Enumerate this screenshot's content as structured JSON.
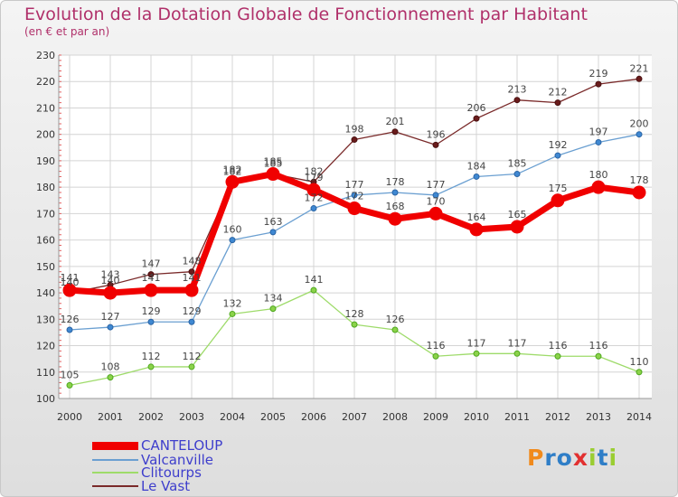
{
  "title": "Evolution de la Dotation Globale de Fonctionnement par Habitant",
  "subtitle": "(en € et par an)",
  "logo": {
    "text": "ProXiti",
    "letters": [
      "P",
      "r",
      "o",
      "x",
      "i",
      "t",
      "i"
    ],
    "colors": [
      "#f08a1c",
      "#2f7ec7",
      "#2f7ec7",
      "#e23030",
      "#9acd32",
      "#2f7ec7",
      "#9acd32"
    ]
  },
  "colors": {
    "canteloup": "#f00000",
    "valcanville": "#6a9fd1",
    "clitourps": "#9edb6a",
    "levast": "#7a2a2a",
    "axis_text": "#333333",
    "grid": "#d4d4d4",
    "value_text": "#444444"
  },
  "chart_data": {
    "type": "line",
    "title": "Evolution de la Dotation Globale de Fonctionnement par Habitant",
    "subtitle": "(en € et par an)",
    "xlabel": "",
    "ylabel": "",
    "ylim": [
      100,
      230
    ],
    "yticks": [
      100,
      110,
      120,
      130,
      140,
      150,
      160,
      170,
      180,
      190,
      200,
      210,
      220,
      230
    ],
    "categories": [
      "2000",
      "2001",
      "2002",
      "2003",
      "2004",
      "2005",
      "2006",
      "2007",
      "2008",
      "2009",
      "2010",
      "2011",
      "2012",
      "2013",
      "2014"
    ],
    "grid": true,
    "legend_position": "bottom-left",
    "series": [
      {
        "name": "CANTELOUP",
        "key": "canteloup",
        "values": [
          141,
          140,
          141,
          141,
          182,
          185,
          179,
          172,
          168,
          170,
          164,
          165,
          175,
          180,
          178
        ],
        "labels": [
          "141",
          "140",
          "141",
          "141",
          "182",
          "185",
          "179",
          "172",
          "168",
          "170",
          "164",
          "165",
          "175",
          "180",
          "178"
        ]
      },
      {
        "name": "Valcanville",
        "key": "valcanville",
        "values": [
          126,
          127,
          129,
          129,
          160,
          163,
          172,
          177,
          178,
          177,
          184,
          185,
          192,
          197,
          200
        ],
        "labels": [
          "126",
          "127",
          "129",
          "129",
          "160",
          "163",
          "172",
          "177",
          "178",
          "177",
          "184",
          "185",
          "192",
          "197",
          "200"
        ]
      },
      {
        "name": "Clitourps",
        "key": "clitourps",
        "values": [
          105,
          108,
          112,
          112,
          132,
          134,
          141,
          128,
          126,
          116,
          117,
          117,
          116,
          116,
          110
        ],
        "labels": [
          "105",
          "108",
          "112",
          "112",
          "132",
          "134",
          "141",
          "128",
          "126",
          "116",
          "117",
          "117",
          "116",
          "116",
          "110"
        ]
      },
      {
        "name": "Le Vast",
        "key": "levast",
        "values": [
          140,
          143,
          147,
          148,
          182,
          185,
          182,
          198,
          201,
          196,
          206,
          213,
          212,
          219,
          221
        ],
        "labels": [
          "140",
          "143",
          "147",
          "148",
          "182",
          "185",
          "182",
          "198",
          "201",
          "196",
          "206",
          "213",
          "212",
          "219",
          "221"
        ]
      }
    ]
  }
}
